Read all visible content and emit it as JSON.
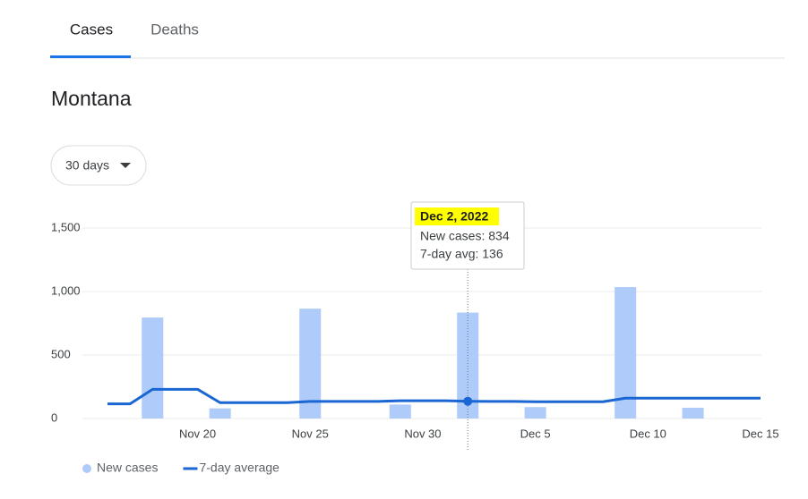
{
  "tabs": [
    "Cases",
    "Deaths"
  ],
  "region": "Montana",
  "range_selector": "30 days",
  "chart_data": {
    "type": "bar-line",
    "categories": [
      null,
      null,
      null,
      null,
      "Nov 20",
      null,
      null,
      null,
      null,
      "Nov 25",
      null,
      null,
      null,
      null,
      "Nov 30",
      null,
      null,
      null,
      null,
      "Dec 5",
      null,
      null,
      null,
      null,
      "Dec 10",
      null,
      null,
      null,
      null,
      "Dec 15"
    ],
    "series": [
      {
        "name": "New cases",
        "color": "#aecbfa",
        "kind": "bar",
        "values": [
          null,
          null,
          795,
          null,
          null,
          80,
          null,
          null,
          null,
          865,
          null,
          null,
          null,
          110,
          null,
          null,
          834,
          null,
          null,
          90,
          null,
          null,
          null,
          1035,
          null,
          null,
          85,
          null,
          null,
          null
        ]
      },
      {
        "name": "7-day average",
        "color": "#1a66d2",
        "kind": "line",
        "values": [
          115,
          115,
          230,
          230,
          230,
          125,
          125,
          125,
          125,
          135,
          135,
          135,
          135,
          140,
          140,
          140,
          136,
          135,
          135,
          132,
          132,
          132,
          132,
          160,
          160,
          160,
          160,
          160,
          160,
          160
        ]
      }
    ],
    "ylim": [
      0,
      1500
    ],
    "yticks": [
      0,
      500,
      {
        "value": 1000,
        "label": "1,000"
      },
      {
        "value": 1500,
        "label": "1,500"
      }
    ],
    "grid": true,
    "legend": "bottom-left",
    "tooltip": {
      "title": "Dec 2, 2022",
      "lines": [
        "New cases: 834",
        "7-day avg: 136"
      ]
    }
  }
}
